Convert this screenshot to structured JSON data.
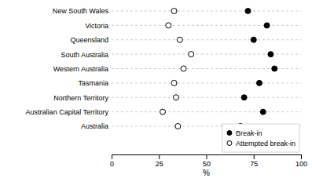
{
  "chart_data": {
    "type": "dot",
    "orientation": "horizontal",
    "categories": [
      "New South Wales",
      "Victoria",
      "Queensland",
      "South Australia",
      "Western Australia",
      "Tasmania",
      "Northern Territory",
      "Australian Capital Territory",
      "Australia"
    ],
    "series": [
      {
        "name": "Break-in",
        "color": "#000000",
        "values": [
          72,
          82,
          75,
          84,
          86,
          78,
          70,
          80,
          68
        ]
      },
      {
        "name": "Attempted break-in",
        "color": "#ffffff",
        "values": [
          33,
          30,
          36,
          42,
          38,
          33,
          34,
          27,
          35
        ]
      }
    ],
    "xlabel": "%",
    "xlim": [
      0,
      100
    ],
    "xticks": [
      0,
      25,
      50,
      75,
      100
    ],
    "grid": true,
    "legend": "lower right"
  }
}
